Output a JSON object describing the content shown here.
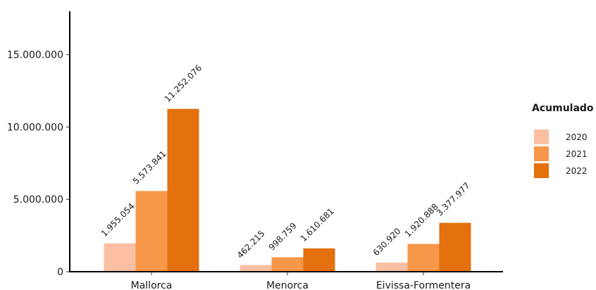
{
  "chart_data": {
    "type": "bar",
    "categories": [
      "Mallorca",
      "Menorca",
      "Eivissa-Formentera"
    ],
    "series": [
      {
        "name": "2020",
        "values": [
          1955054,
          462215,
          630920
        ],
        "labels": [
          "1.955.054",
          "462.215",
          "630.920"
        ],
        "color": "#FBC0A3"
      },
      {
        "name": "2021",
        "values": [
          5573841,
          998759,
          1920888
        ],
        "labels": [
          "5.573.841",
          "998.759",
          "1.920.888"
        ],
        "color": "#F7974A"
      },
      {
        "name": "2022",
        "values": [
          11252076,
          1610681,
          3377977
        ],
        "labels": [
          "11.252.076",
          "1.610.681",
          "3.377.977"
        ],
        "color": "#E4700E"
      }
    ],
    "legend_title": "Acumulado",
    "legend_position": "right",
    "yticks": [
      0,
      5000000,
      10000000,
      15000000
    ],
    "ytick_labels": [
      "0",
      "5.000.000",
      "10.000.000",
      "15.000.000"
    ],
    "ylim": [
      0,
      18000000
    ],
    "grid": false,
    "xlabel": "",
    "ylabel": ""
  }
}
